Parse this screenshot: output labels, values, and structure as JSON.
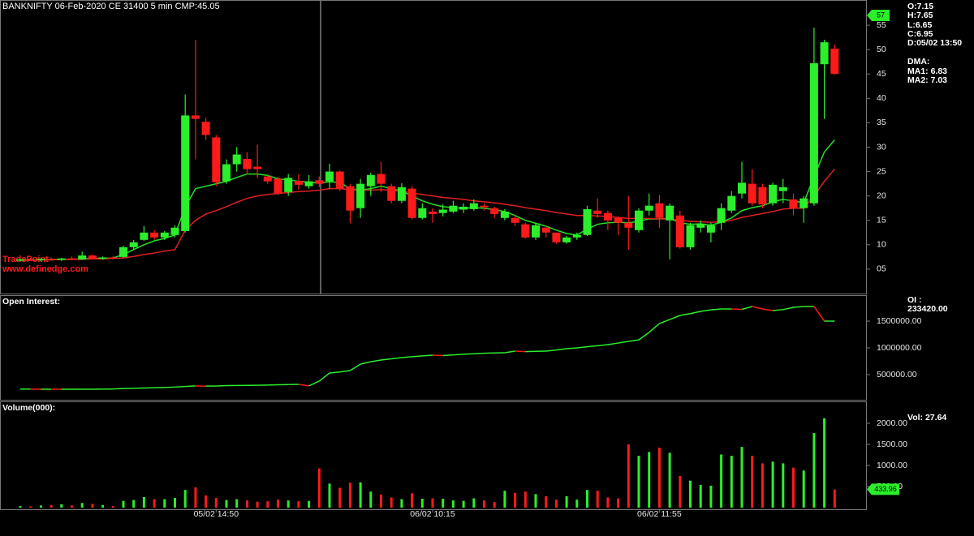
{
  "header": {
    "title": "BANKNIFTY 06-Feb-2020 CE 31400 5 min CMP:45.05",
    "watermark": [
      "TradePoint",
      "www.definedge.com"
    ]
  },
  "info": {
    "ohlc": [
      "O:7.15",
      "H:7.65",
      "L:6.65",
      "C:6.95",
      "D:05/02 13:50"
    ],
    "dma_title": "DMA:",
    "ma": [
      "MA1: 6.83",
      "MA2: 7.03"
    ],
    "oi_title": "OI :",
    "oi_value": "233420.00",
    "volume": "Vol: 27.64"
  },
  "chart_data": [
    {
      "type": "candlestick",
      "up_color": "#2bef2b",
      "down_color": "#ff1a1a",
      "open": [
        6.8,
        7.0,
        6.9,
        7.1,
        6.9,
        7.2,
        7.0,
        7.8,
        7.2,
        7.4,
        7.5,
        9.5,
        11.0,
        12.5,
        11.5,
        12.0,
        12.8,
        36.5,
        35.2,
        32.0,
        23.0,
        26.5,
        27.6,
        26.0,
        24.0,
        23.5,
        20.8,
        23.1,
        22.0,
        23.2,
        23.0,
        25.0,
        22.0,
        17.5,
        22.0,
        24.5,
        22.0,
        19.0,
        21.5,
        15.5,
        16.8,
        16.5,
        16.8,
        17.2,
        17.3,
        18.0,
        17.5,
        15.5,
        15.5,
        14.2,
        11.5,
        13.5,
        12.5,
        10.5,
        11.5,
        12.0,
        17.0,
        16.5,
        15.5,
        14.5,
        13.0,
        17.0,
        18.5,
        15.0,
        16.0,
        9.5,
        13.5,
        12.5,
        14.5,
        17.0,
        20.5,
        22.5,
        21.8,
        18.5,
        21.0,
        19.3,
        17.5,
        18.5,
        47.0,
        50.2
      ],
      "high": [
        7.2,
        7.3,
        7.2,
        7.4,
        7.3,
        7.6,
        8.6,
        8.0,
        7.6,
        7.7,
        9.8,
        11.0,
        13.8,
        13.0,
        12.8,
        14.0,
        40.8,
        52.0,
        36.0,
        32.5,
        27.5,
        30.0,
        29.0,
        30.5,
        24.5,
        24.0,
        24.5,
        24.5,
        24.3,
        24.0,
        26.6,
        25.2,
        22.5,
        23.5,
        24.8,
        27.0,
        22.5,
        22.6,
        22.0,
        18.5,
        17.5,
        18.3,
        19.0,
        18.5,
        19.3,
        18.5,
        17.8,
        17.3,
        16.0,
        14.5,
        14.5,
        14.0,
        12.5,
        11.8,
        12.5,
        18.0,
        19.5,
        17.0,
        15.8,
        20.0,
        17.5,
        20.5,
        20.2,
        18.5,
        17.0,
        14.5,
        15.0,
        14.5,
        18.5,
        21.0,
        27.0,
        25.5,
        22.5,
        22.7,
        23.5,
        20.5,
        20.0,
        54.5,
        52.0,
        51.0
      ],
      "low": [
        6.6,
        6.7,
        6.6,
        6.8,
        6.7,
        6.9,
        6.9,
        7.0,
        6.9,
        7.0,
        7.3,
        9.0,
        10.8,
        11.0,
        11.0,
        11.5,
        12.5,
        27.5,
        31.5,
        22.0,
        22.5,
        25.0,
        24.5,
        23.7,
        22.5,
        20.2,
        20.0,
        21.3,
        21.5,
        21.8,
        21.5,
        21.0,
        14.4,
        15.5,
        20.0,
        20.8,
        18.5,
        18.5,
        15.2,
        15.2,
        14.5,
        15.8,
        16.5,
        16.5,
        17.0,
        17.0,
        15.5,
        15.0,
        13.8,
        11.3,
        11.0,
        11.5,
        10.2,
        10.2,
        11.0,
        11.8,
        15.5,
        13.0,
        12.0,
        9.0,
        12.5,
        16.0,
        13.5,
        7.0,
        9.2,
        9.0,
        12.5,
        10.5,
        13.0,
        16.5,
        19.5,
        18.0,
        17.5,
        18.0,
        18.5,
        16.0,
        14.5,
        18.0,
        35.8,
        44.8
      ],
      "close": [
        7.0,
        6.9,
        7.1,
        6.9,
        7.2,
        7.0,
        7.8,
        7.2,
        7.4,
        7.3,
        9.5,
        10.5,
        12.5,
        11.5,
        12.5,
        13.5,
        36.5,
        35.8,
        32.5,
        22.8,
        26.5,
        28.5,
        25.5,
        25.5,
        23.0,
        20.5,
        23.7,
        22.3,
        23.0,
        22.5,
        25.0,
        21.5,
        17.0,
        22.5,
        24.3,
        22.5,
        19.0,
        21.8,
        15.5,
        17.5,
        16.3,
        17.2,
        18.0,
        17.8,
        18.5,
        17.7,
        16.3,
        16.8,
        14.5,
        11.5,
        14.0,
        12.5,
        10.5,
        11.5,
        12.0,
        17.3,
        16.3,
        15.0,
        14.5,
        13.5,
        17.0,
        18.0,
        15.5,
        18.0,
        9.5,
        14.0,
        14.2,
        14.0,
        17.5,
        20.0,
        22.7,
        18.5,
        18.3,
        22.3,
        21.8,
        17.5,
        19.5,
        47.2,
        51.5,
        45.05
      ],
      "moving_averages": [
        {
          "color": "#22e022",
          "values": [
            6.8,
            6.9,
            6.9,
            7.0,
            7.0,
            7.0,
            7.1,
            7.2,
            7.2,
            7.3,
            8.0,
            9.0,
            10.0,
            10.8,
            11.3,
            12.0,
            17.7,
            21.5,
            22.0,
            22.5,
            23.0,
            23.8,
            24.5,
            24.5,
            24.2,
            23.5,
            23.3,
            23.0,
            22.8,
            22.7,
            22.9,
            22.8,
            21.5,
            21.2,
            21.5,
            22.0,
            21.5,
            21.0,
            20.0,
            19.0,
            18.3,
            17.8,
            17.6,
            17.5,
            17.6,
            17.5,
            17.2,
            16.8,
            16.0,
            15.0,
            14.4,
            13.8,
            13.0,
            12.3,
            12.0,
            13.2,
            14.2,
            14.5,
            14.6,
            14.5,
            14.8,
            15.3,
            15.3,
            15.4,
            14.5,
            14.2,
            14.3,
            14.0,
            14.6,
            15.5,
            17.0,
            17.6,
            18.0,
            18.8,
            19.3,
            19.0,
            18.6,
            24.0,
            29.0,
            31.5
          ]
        },
        {
          "color": "#e02020",
          "values": [
            6.8,
            6.8,
            6.9,
            6.9,
            7.0,
            7.0,
            7.0,
            7.1,
            7.1,
            7.2,
            7.3,
            7.6,
            8.0,
            8.3,
            8.7,
            9.0,
            13.0,
            15.0,
            16.3,
            17.0,
            17.8,
            18.7,
            19.5,
            20.0,
            20.3,
            20.5,
            20.7,
            20.9,
            21.0,
            21.2,
            21.5,
            21.5,
            21.3,
            21.2,
            21.2,
            21.3,
            21.2,
            21.0,
            20.6,
            20.3,
            20.0,
            19.7,
            19.5,
            19.3,
            19.0,
            18.8,
            18.6,
            18.3,
            18.0,
            17.6,
            17.3,
            17.0,
            16.6,
            16.3,
            16.0,
            16.0,
            15.9,
            15.8,
            15.6,
            15.4,
            15.4,
            15.4,
            15.3,
            15.3,
            15.0,
            14.8,
            14.7,
            14.6,
            14.7,
            15.0,
            15.6,
            16.0,
            16.4,
            16.8,
            17.3,
            17.5,
            17.5,
            20.0,
            23.0,
            25.5
          ]
        }
      ],
      "ylim": [
        0,
        60
      ],
      "yticks": [
        {
          "value": 5,
          "label": "05"
        },
        10,
        15,
        20,
        25,
        30,
        35,
        40,
        45,
        50,
        55
      ],
      "marker": 57,
      "marker_color": "#2bef2b"
    },
    {
      "type": "line",
      "title": "Open Interest:",
      "up_color": "#2bef2b",
      "down_color": "#ff1a1a",
      "values": [
        230000,
        230000,
        228000,
        228000,
        227000,
        227000,
        228000,
        228000,
        230000,
        232000,
        240000,
        245000,
        250000,
        255000,
        260000,
        268000,
        278000,
        290000,
        285000,
        288000,
        295000,
        298000,
        300000,
        302000,
        305000,
        310000,
        315000,
        318000,
        290000,
        380000,
        530000,
        550000,
        576000,
        697000,
        740000,
        773000,
        795000,
        818000,
        835000,
        850000,
        864000,
        856000,
        870000,
        880000,
        890000,
        900000,
        905000,
        909000,
        940000,
        930000,
        935000,
        940000,
        960000,
        985000,
        1000000,
        1020000,
        1040000,
        1060000,
        1090000,
        1121000,
        1150000,
        1288000,
        1455000,
        1530000,
        1606000,
        1640000,
        1682000,
        1710000,
        1727000,
        1727000,
        1720000,
        1773000,
        1727000,
        1697000,
        1715000,
        1757000,
        1773000,
        1773000,
        1500000,
        1500000
      ],
      "ylim": [
        0,
        2000000
      ],
      "yticks": [
        {
          "value": 500000,
          "label": "500000.00"
        },
        {
          "value": 1000000,
          "label": "1000000.00"
        },
        {
          "value": 1500000,
          "label": "1500000.00"
        }
      ]
    },
    {
      "type": "bar",
      "title": "Volume(000):",
      "categories": [
        null,
        null,
        null,
        null,
        null,
        null,
        null,
        null,
        null,
        null,
        null,
        null,
        null,
        null,
        null,
        null,
        null,
        null,
        null,
        "05/02 14:50",
        null,
        null,
        null,
        null,
        null,
        null,
        null,
        null,
        null,
        null,
        null,
        null,
        null,
        null,
        null,
        null,
        null,
        null,
        null,
        null,
        "06/02 10:15",
        null,
        null,
        null,
        null,
        null,
        null,
        null,
        null,
        null,
        null,
        null,
        null,
        null,
        null,
        null,
        null,
        null,
        null,
        null,
        null,
        null,
        "06/02 11:55",
        null,
        null,
        null,
        null,
        null,
        null,
        null,
        null,
        null,
        null,
        null,
        null,
        null,
        null,
        null,
        null,
        null
      ],
      "values": [
        40,
        30,
        50,
        60,
        80,
        50,
        110,
        90,
        60,
        40,
        160,
        180,
        250,
        200,
        200,
        230,
        420,
        480,
        290,
        230,
        180,
        200,
        170,
        140,
        150,
        190,
        170,
        150,
        160,
        930,
        570,
        470,
        590,
        600,
        380,
        310,
        240,
        200,
        340,
        210,
        220,
        210,
        170,
        160,
        220,
        170,
        130,
        400,
        350,
        380,
        320,
        270,
        190,
        270,
        190,
        420,
        400,
        240,
        220,
        1500,
        1230,
        1320,
        1420,
        1300,
        750,
        640,
        540,
        520,
        1260,
        1230,
        1440,
        1230,
        1050,
        1090,
        1050,
        950,
        880,
        1770,
        2120,
        430
      ],
      "ylim": [
        0,
        2500
      ],
      "yticks": [
        {
          "value": 500,
          "label": "500.00"
        },
        {
          "value": 1000,
          "label": "1000.00"
        },
        {
          "value": 1500,
          "label": "1500.00"
        },
        {
          "value": 2000,
          "label": "2000.00"
        }
      ],
      "marker": 433.96,
      "marker_color": "#2bef2b"
    }
  ]
}
